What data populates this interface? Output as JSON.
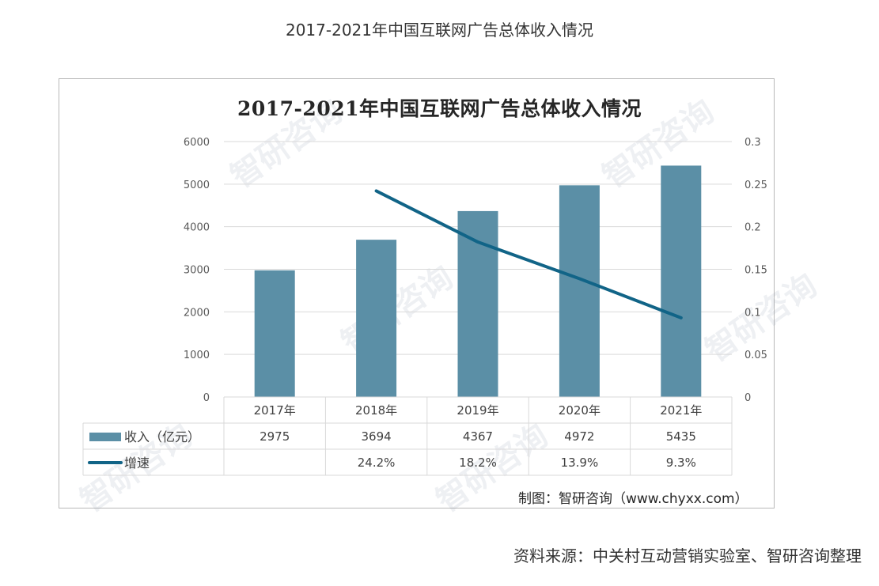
{
  "page": {
    "title": "2017-2021年中国互联网广告总体收入情况",
    "source": "资料来源：中关村互动营销实验室、智研咨询整理"
  },
  "chart": {
    "title": "2017-2021年中国互联网广告总体收入情况",
    "credit": "制图：智研咨询（www.chyxx.com）",
    "watermark": "智研咨询",
    "left_ticks": [
      "0",
      "1000",
      "2000",
      "3000",
      "4000",
      "5000",
      "6000"
    ],
    "right_ticks": [
      "0",
      "0.05",
      "0.1",
      "0.15",
      "0.2",
      "0.25",
      "0.3"
    ],
    "table": {
      "headers": [
        "2017年",
        "2018年",
        "2019年",
        "2020年",
        "2021年"
      ],
      "rows": [
        {
          "legend": "收入（亿元）",
          "values": [
            "2975",
            "3694",
            "4367",
            "4972",
            "5435"
          ]
        },
        {
          "legend": "增速",
          "values": [
            "",
            "24.2%",
            "18.2%",
            "13.9%",
            "9.3%"
          ]
        }
      ]
    },
    "colors": {
      "bar": "#5b8fa6",
      "line": "#116487",
      "grid": "#d9d9d9",
      "axis_text": "#595959"
    }
  },
  "chart_data": {
    "type": "bar",
    "title": "2017-2021年中国互联网广告总体收入情况",
    "categories": [
      "2017年",
      "2018年",
      "2019年",
      "2020年",
      "2021年"
    ],
    "series": [
      {
        "name": "收入（亿元）",
        "type": "bar",
        "axis": "left",
        "values": [
          2975,
          3694,
          4367,
          4972,
          5435
        ]
      },
      {
        "name": "增速",
        "type": "line",
        "axis": "right",
        "values": [
          null,
          0.242,
          0.182,
          0.139,
          0.093
        ]
      }
    ],
    "xlabel": "",
    "ylabel": "",
    "ylim": [
      0,
      6000
    ],
    "y2lim": [
      0,
      0.3
    ],
    "yticks": [
      0,
      1000,
      2000,
      3000,
      4000,
      5000,
      6000
    ],
    "y2ticks": [
      0,
      0.05,
      0.1,
      0.15,
      0.2,
      0.25,
      0.3
    ],
    "grid": true,
    "legend_position": "data-table-bottom",
    "source": "资料来源：中关村互动营销实验室、智研咨询整理",
    "credit": "制图：智研咨询（www.chyxx.com）"
  }
}
